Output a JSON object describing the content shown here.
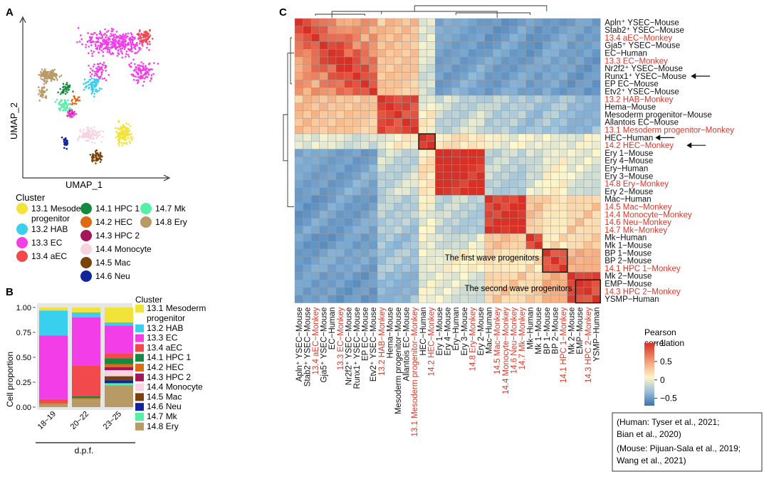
{
  "panels": {
    "a": "A",
    "b": "B",
    "c": "C"
  },
  "umap": {
    "xlabel": "UMAP_1",
    "ylabel": "UMAP_2",
    "legend_title": "Cluster",
    "legend": [
      {
        "label": "13.1 Mesoderm progenitor",
        "color": "#f2e33a"
      },
      {
        "label": "13.2 HAB",
        "color": "#39cfee"
      },
      {
        "label": "13.3 EC",
        "color": "#f23de8"
      },
      {
        "label": "13.4 aEC",
        "color": "#f2494c"
      },
      {
        "label": "14.1 HPC 1",
        "color": "#138a3d"
      },
      {
        "label": "14.2 HEC",
        "color": "#df6a12"
      },
      {
        "label": "14.3 HPC 2",
        "color": "#a7145a"
      },
      {
        "label": "14.4 Monocyte",
        "color": "#f7d3e1"
      },
      {
        "label": "14.5 Mac",
        "color": "#7a4209"
      },
      {
        "label": "14.6 Neu",
        "color": "#10249b"
      },
      {
        "label": "14.7 Mk",
        "color": "#54f0a5"
      },
      {
        "label": "14.8 Ery",
        "color": "#b89a66"
      }
    ]
  },
  "chart_data": [
    {
      "type": "bar",
      "stacked": true,
      "title": "",
      "xlabel": "d.p.f.",
      "ylabel": "Cell proportion",
      "ylim": [
        0,
        1
      ],
      "yticks": [
        "0.00",
        "0.25",
        "0.50",
        "0.75",
        "1.00"
      ],
      "categories": [
        "18~19",
        "20~22",
        "23~25"
      ],
      "legend_title": "Cluster",
      "series": [
        {
          "name": "13.1 Mesoderm progenitor",
          "color": "#f2e33a",
          "values": [
            0.03,
            0.05,
            0.15
          ]
        },
        {
          "name": "13.2 HAB",
          "color": "#39cfee",
          "values": [
            0.25,
            0.05,
            0.03
          ]
        },
        {
          "name": "13.3 EC",
          "color": "#f23de8",
          "values": [
            0.64,
            0.48,
            0.28
          ]
        },
        {
          "name": "13.4 aEC",
          "color": "#f2494c",
          "values": [
            0.04,
            0.31,
            0.05
          ]
        },
        {
          "name": "14.1 HPC 1",
          "color": "#138a3d",
          "values": [
            0.0,
            0.02,
            0.06
          ]
        },
        {
          "name": "14.2 HEC",
          "color": "#df6a12",
          "values": [
            0.01,
            0.01,
            0.03
          ]
        },
        {
          "name": "14.3 HPC 2",
          "color": "#a7145a",
          "values": [
            0.0,
            0.0,
            0.03
          ]
        },
        {
          "name": "14.4 Monocyte",
          "color": "#f7d3e1",
          "values": [
            0.0,
            0.0,
            0.06
          ]
        },
        {
          "name": "14.5 Mac",
          "color": "#7a4209",
          "values": [
            0.0,
            0.0,
            0.04
          ]
        },
        {
          "name": "14.6 Neu",
          "color": "#10249b",
          "values": [
            0.0,
            0.0,
            0.03
          ]
        },
        {
          "name": "14.7 Mk",
          "color": "#54f0a5",
          "values": [
            0.0,
            0.0,
            0.02
          ]
        },
        {
          "name": "14.8 Ery",
          "color": "#b89a66",
          "values": [
            0.03,
            0.08,
            0.22
          ]
        }
      ]
    },
    {
      "type": "heatmap",
      "title": "",
      "colorbar_title": "Pearson correlation",
      "colorbar_ticks": [
        "1",
        "0.5",
        "0",
        "−0.5"
      ],
      "clim": [
        -0.7,
        1
      ],
      "labels": [
        {
          "name": "Apln⁺ YSEC−Mouse",
          "monkey": false
        },
        {
          "name": "Stab2⁺ YSEC−Mouse",
          "monkey": false
        },
        {
          "name": "13.4 aEC−Monkey",
          "monkey": true
        },
        {
          "name": "Gja5⁺ YSEC−Mouse",
          "monkey": false
        },
        {
          "name": "EC−Human",
          "monkey": false
        },
        {
          "name": "13.3 EC−Monkey",
          "monkey": true
        },
        {
          "name": "Nr2f2⁺ YSEC−Mouse",
          "monkey": false
        },
        {
          "name": "Runx1⁺ YSEC−Mouse",
          "monkey": false
        },
        {
          "name": "EP EC−Mouse",
          "monkey": false
        },
        {
          "name": "Etv2⁺ YSEC−Mouse",
          "monkey": false
        },
        {
          "name": "13.2 HAB−Monkey",
          "monkey": true
        },
        {
          "name": "Hema−Mouse",
          "monkey": false
        },
        {
          "name": "Mesoderm progenitor−Mouse",
          "monkey": false
        },
        {
          "name": "Allantois EC−Mouse",
          "monkey": false
        },
        {
          "name": "13.1 Mesoderm progenitor−Monkey",
          "monkey": true
        },
        {
          "name": "HEC−Human",
          "monkey": false
        },
        {
          "name": "14.2 HEC−Monkey",
          "monkey": true
        },
        {
          "name": "Ery 1−Mouse",
          "monkey": false
        },
        {
          "name": "Ery 4−Mouse",
          "monkey": false
        },
        {
          "name": "Ery−Human",
          "monkey": false
        },
        {
          "name": "Ery 3−Mouse",
          "monkey": false
        },
        {
          "name": "14.8 Ery−Monkey",
          "monkey": true
        },
        {
          "name": "Ery 2−Mouse",
          "monkey": false
        },
        {
          "name": "Mac−Human",
          "monkey": false
        },
        {
          "name": "14.5 Mac−Monkey",
          "monkey": true
        },
        {
          "name": "14.4 Monocyte−Monkey",
          "monkey": true
        },
        {
          "name": "14.6 Neu−Monkey",
          "monkey": true
        },
        {
          "name": "14.7 Mk−Monkey",
          "monkey": true
        },
        {
          "name": "Mk−Human",
          "monkey": false
        },
        {
          "name": "Mk 1−Mouse",
          "monkey": false
        },
        {
          "name": "BP 1−Mouse",
          "monkey": false
        },
        {
          "name": "BP 2−Mouse",
          "monkey": false
        },
        {
          "name": "14.1 HPC 1−Monkey",
          "monkey": true
        },
        {
          "name": "Mk 2−Mouse",
          "monkey": false
        },
        {
          "name": "EMP−Mouse",
          "monkey": false
        },
        {
          "name": "14.3 HPC 2−Monkey",
          "monkey": true
        },
        {
          "name": "YSMP−Human",
          "monkey": false
        }
      ],
      "groups": [
        {
          "name": "endothelial",
          "start": 0,
          "end": 9
        },
        {
          "name": "early",
          "start": 10,
          "end": 14
        },
        {
          "name": "hec",
          "start": 15,
          "end": 16
        },
        {
          "name": "ery",
          "start": 17,
          "end": 22
        },
        {
          "name": "myeloid",
          "start": 23,
          "end": 27
        },
        {
          "name": "mk",
          "start": 28,
          "end": 29
        },
        {
          "name": "first_wave",
          "start": 30,
          "end": 32
        },
        {
          "name": "second_wave",
          "start": 33,
          "end": 36
        }
      ],
      "arrowed_rows": [
        "Runx1⁺ YSEC−Mouse",
        "HEC−Human",
        "14.2 HEC−Monkey"
      ],
      "annotations": [
        {
          "text": "The first wave progenitors",
          "rows": [
            30,
            32
          ]
        },
        {
          "text": "The second wave progenitors",
          "rows": [
            34,
            36
          ]
        }
      ]
    }
  ],
  "reference_box": [
    "(Human: Tyser et al., 2021;",
    "Bian et al., 2020)",
    "(Mouse: Pijuan-Sala et al., 2019;",
    "Wang et al., 2021)"
  ],
  "colors": {
    "monkey_label": "#d7392b",
    "text": "#111111"
  }
}
